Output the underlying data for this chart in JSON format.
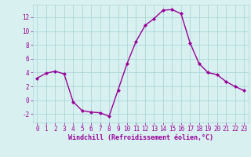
{
  "x": [
    0,
    1,
    2,
    3,
    4,
    5,
    6,
    7,
    8,
    9,
    10,
    11,
    12,
    13,
    14,
    15,
    16,
    17,
    18,
    19,
    20,
    21,
    22,
    23
  ],
  "y": [
    3.2,
    3.9,
    4.2,
    3.8,
    -0.2,
    -1.5,
    -1.7,
    -1.8,
    -2.3,
    1.5,
    5.3,
    8.5,
    10.8,
    11.8,
    13.0,
    13.1,
    12.5,
    8.3,
    5.3,
    4.0,
    3.7,
    2.7,
    2.0,
    1.4
  ],
  "line_color": "#990099",
  "marker": "D",
  "marker_size": 2.0,
  "bg_color": "#d8f0f0",
  "grid_color": "#aad8d8",
  "xlabel": "Windchill (Refroidissement éolien,°C)",
  "xlabel_color": "#990099",
  "tick_color": "#990099",
  "xlim": [
    -0.5,
    23.5
  ],
  "ylim": [
    -3.2,
    13.8
  ],
  "yticks": [
    -2,
    0,
    2,
    4,
    6,
    8,
    10,
    12
  ],
  "xticks": [
    0,
    1,
    2,
    3,
    4,
    5,
    6,
    7,
    8,
    9,
    10,
    11,
    12,
    13,
    14,
    15,
    16,
    17,
    18,
    19,
    20,
    21,
    22,
    23
  ],
  "line_width": 1.0,
  "tick_fontsize": 5.5,
  "xlabel_fontsize": 6.0
}
